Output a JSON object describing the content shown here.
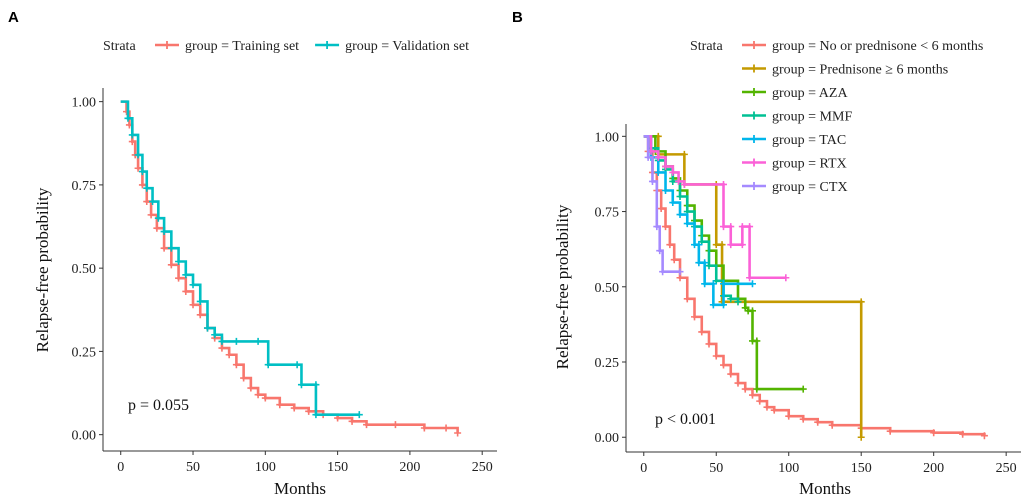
{
  "chart_data": [
    {
      "type": "line",
      "subtype": "kaplan-meier",
      "panel_label": "A",
      "xlabel": "Months",
      "ylabel": "Relapse-free probability",
      "xlim": [
        0,
        250
      ],
      "ylim": [
        0,
        1
      ],
      "x_ticks": [
        0,
        50,
        100,
        150,
        200,
        250
      ],
      "x_tick_labels": [
        "0",
        "50",
        "100",
        "150",
        "200",
        "250"
      ],
      "y_ticks": [
        0,
        0.25,
        0.5,
        0.75,
        1.0
      ],
      "y_tick_labels": [
        "0.00",
        "0.25",
        "0.50",
        "0.75",
        "1.00"
      ],
      "legend_title": "Strata",
      "legend_position": "top",
      "annotation": "p = 0.055",
      "series": [
        {
          "name": "group = Training set",
          "color": "#F8766D",
          "points": [
            [
              0,
              1.0
            ],
            [
              4,
              0.97
            ],
            [
              6,
              0.93
            ],
            [
              8,
              0.88
            ],
            [
              10,
              0.84
            ],
            [
              12,
              0.8
            ],
            [
              15,
              0.75
            ],
            [
              18,
              0.7
            ],
            [
              21,
              0.66
            ],
            [
              25,
              0.62
            ],
            [
              30,
              0.56
            ],
            [
              35,
              0.51
            ],
            [
              40,
              0.47
            ],
            [
              45,
              0.43
            ],
            [
              50,
              0.39
            ],
            [
              55,
              0.36
            ],
            [
              60,
              0.32
            ],
            [
              65,
              0.29
            ],
            [
              70,
              0.26
            ],
            [
              75,
              0.24
            ],
            [
              80,
              0.21
            ],
            [
              85,
              0.17
            ],
            [
              90,
              0.14
            ],
            [
              95,
              0.12
            ],
            [
              100,
              0.11
            ],
            [
              110,
              0.09
            ],
            [
              120,
              0.08
            ],
            [
              130,
              0.07
            ],
            [
              140,
              0.06
            ],
            [
              150,
              0.05
            ],
            [
              160,
              0.04
            ],
            [
              170,
              0.03
            ],
            [
              190,
              0.03
            ],
            [
              210,
              0.02
            ],
            [
              225,
              0.02
            ],
            [
              233,
              0.005
            ]
          ]
        },
        {
          "name": "group = Validation set",
          "color": "#00BFC4",
          "points": [
            [
              0,
              1.0
            ],
            [
              5,
              0.95
            ],
            [
              8,
              0.9
            ],
            [
              12,
              0.84
            ],
            [
              15,
              0.79
            ],
            [
              18,
              0.74
            ],
            [
              22,
              0.7
            ],
            [
              26,
              0.65
            ],
            [
              30,
              0.61
            ],
            [
              35,
              0.56
            ],
            [
              40,
              0.52
            ],
            [
              45,
              0.48
            ],
            [
              50,
              0.45
            ],
            [
              55,
              0.4
            ],
            [
              60,
              0.32
            ],
            [
              65,
              0.3
            ],
            [
              70,
              0.28
            ],
            [
              80,
              0.28
            ],
            [
              95,
              0.28
            ],
            [
              102,
              0.21
            ],
            [
              122,
              0.21
            ],
            [
              125,
              0.15
            ],
            [
              135,
              0.15
            ],
            [
              135,
              0.06
            ],
            [
              165,
              0.06
            ]
          ]
        }
      ]
    },
    {
      "type": "line",
      "subtype": "kaplan-meier",
      "panel_label": "B",
      "xlabel": "Months",
      "ylabel": "Relapse-free probability",
      "xlim": [
        0,
        250
      ],
      "ylim": [
        0,
        1
      ],
      "x_ticks": [
        0,
        50,
        100,
        150,
        200,
        250
      ],
      "x_tick_labels": [
        "0",
        "50",
        "100",
        "150",
        "200",
        "250"
      ],
      "y_ticks": [
        0,
        0.25,
        0.5,
        0.75,
        1.0
      ],
      "y_tick_labels": [
        "0.00",
        "0.25",
        "0.50",
        "0.75",
        "1.00"
      ],
      "legend_title": "Strata",
      "legend_position": "top-right",
      "annotation": "p < 0.001",
      "series": [
        {
          "name": "group = No or prednisone < 6 months",
          "color": "#F8766D",
          "points": [
            [
              0,
              1.0
            ],
            [
              3,
              0.95
            ],
            [
              6,
              0.88
            ],
            [
              9,
              0.82
            ],
            [
              12,
              0.76
            ],
            [
              15,
              0.7
            ],
            [
              18,
              0.64
            ],
            [
              21,
              0.59
            ],
            [
              25,
              0.53
            ],
            [
              30,
              0.46
            ],
            [
              35,
              0.4
            ],
            [
              40,
              0.35
            ],
            [
              45,
              0.31
            ],
            [
              50,
              0.27
            ],
            [
              55,
              0.24
            ],
            [
              60,
              0.21
            ],
            [
              65,
              0.18
            ],
            [
              70,
              0.16
            ],
            [
              75,
              0.14
            ],
            [
              80,
              0.12
            ],
            [
              85,
              0.1
            ],
            [
              90,
              0.09
            ],
            [
              100,
              0.07
            ],
            [
              110,
              0.06
            ],
            [
              120,
              0.05
            ],
            [
              130,
              0.04
            ],
            [
              150,
              0.03
            ],
            [
              170,
              0.02
            ],
            [
              200,
              0.015
            ],
            [
              220,
              0.01
            ],
            [
              235,
              0.005
            ]
          ]
        },
        {
          "name": "group = Prednisone ≥ 6 months",
          "color": "#C49A00",
          "points": [
            [
              0,
              1.0
            ],
            [
              10,
              1.0
            ],
            [
              10,
              0.94
            ],
            [
              28,
              0.94
            ],
            [
              28,
              0.84
            ],
            [
              50,
              0.84
            ],
            [
              50,
              0.64
            ],
            [
              54,
              0.64
            ],
            [
              54,
              0.45
            ],
            [
              150,
              0.45
            ],
            [
              150,
              0.0
            ]
          ]
        },
        {
          "name": "group = AZA",
          "color": "#53B400",
          "points": [
            [
              0,
              1.0
            ],
            [
              8,
              0.95
            ],
            [
              15,
              0.9
            ],
            [
              20,
              0.86
            ],
            [
              25,
              0.82
            ],
            [
              30,
              0.77
            ],
            [
              35,
              0.72
            ],
            [
              40,
              0.67
            ],
            [
              45,
              0.62
            ],
            [
              50,
              0.57
            ],
            [
              55,
              0.52
            ],
            [
              65,
              0.46
            ],
            [
              70,
              0.43
            ],
            [
              72,
              0.42
            ],
            [
              75,
              0.42
            ],
            [
              75,
              0.32
            ],
            [
              78,
              0.32
            ],
            [
              78,
              0.16
            ],
            [
              110,
              0.16
            ]
          ]
        },
        {
          "name": "group = MMF",
          "color": "#00C094",
          "points": [
            [
              0,
              1.0
            ],
            [
              5,
              0.96
            ],
            [
              10,
              0.92
            ],
            [
              15,
              0.89
            ],
            [
              20,
              0.85
            ],
            [
              25,
              0.8
            ],
            [
              30,
              0.75
            ],
            [
              35,
              0.7
            ],
            [
              40,
              0.65
            ],
            [
              45,
              0.57
            ],
            [
              50,
              0.52
            ],
            [
              55,
              0.47
            ],
            [
              60,
              0.46
            ],
            [
              65,
              0.45
            ]
          ]
        },
        {
          "name": "group = TAC",
          "color": "#00B6EB",
          "points": [
            [
              0,
              1.0
            ],
            [
              5,
              0.93
            ],
            [
              10,
              0.88
            ],
            [
              15,
              0.82
            ],
            [
              20,
              0.78
            ],
            [
              25,
              0.74
            ],
            [
              30,
              0.71
            ],
            [
              35,
              0.64
            ],
            [
              38,
              0.64
            ],
            [
              38,
              0.58
            ],
            [
              42,
              0.58
            ],
            [
              42,
              0.51
            ],
            [
              48,
              0.51
            ],
            [
              48,
              0.44
            ],
            [
              55,
              0.44
            ],
            [
              55,
              0.51
            ],
            [
              75,
              0.51
            ]
          ]
        },
        {
          "name": "group = RTX",
          "color": "#FB61D7",
          "points": [
            [
              0,
              1.0
            ],
            [
              5,
              0.95
            ],
            [
              10,
              0.93
            ],
            [
              15,
              0.9
            ],
            [
              20,
              0.88
            ],
            [
              24,
              0.85
            ],
            [
              28,
              0.84
            ],
            [
              55,
              0.84
            ],
            [
              55,
              0.7
            ],
            [
              60,
              0.7
            ],
            [
              60,
              0.64
            ],
            [
              68,
              0.64
            ],
            [
              68,
              0.7
            ],
            [
              73,
              0.7
            ],
            [
              73,
              0.53
            ],
            [
              98,
              0.53
            ]
          ]
        },
        {
          "name": "group = CTX",
          "color": "#A58AFF",
          "points": [
            [
              0,
              1.0
            ],
            [
              3,
              0.93
            ],
            [
              6,
              0.85
            ],
            [
              9,
              0.7
            ],
            [
              11,
              0.62
            ],
            [
              13,
              0.55
            ],
            [
              25,
              0.55
            ]
          ]
        }
      ]
    }
  ]
}
